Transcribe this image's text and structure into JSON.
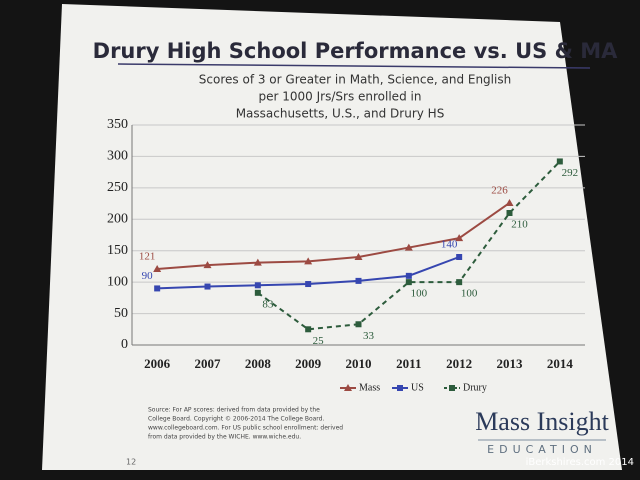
{
  "chart_data": {
    "type": "line",
    "title": "Drury High School Performance vs. US & MA",
    "subtitle": [
      "Scores of 3 or Greater in Math, Science, and English",
      "per 1000 Jrs/Srs enrolled in",
      "Massachusetts, U.S., and Drury HS"
    ],
    "categories": [
      "2006",
      "2007",
      "2008",
      "2009",
      "2010",
      "2011",
      "2012",
      "2013",
      "2014"
    ],
    "series": [
      {
        "name": "Mass",
        "color": "#9c4a42",
        "marker": "triangle",
        "dash": false,
        "values": [
          121,
          127,
          131,
          133,
          140,
          155,
          170,
          226,
          null
        ],
        "value_labels": [
          "121",
          null,
          null,
          null,
          null,
          null,
          null,
          "226",
          null
        ]
      },
      {
        "name": "US",
        "color": "#3646b0",
        "marker": "square",
        "dash": false,
        "values": [
          90,
          93,
          95,
          97,
          102,
          110,
          140,
          null,
          null
        ],
        "value_labels": [
          "90",
          null,
          null,
          null,
          null,
          null,
          "140",
          null,
          null
        ]
      },
      {
        "name": "Drury",
        "color": "#2d5c3c",
        "marker": "square",
        "dash": true,
        "values": [
          null,
          null,
          83,
          25,
          33,
          100,
          100,
          210,
          292
        ],
        "value_labels": [
          null,
          null,
          "83",
          "25",
          "33",
          "100",
          "100",
          "210",
          "292"
        ]
      }
    ],
    "ylim": [
      0,
      350
    ],
    "yticks": [
      0,
      50,
      100,
      150,
      200,
      250,
      300,
      350
    ],
    "grid": true,
    "source": [
      "Source: For AP scores: derived from data provided by the",
      "College Board. Copyright © 2006-2014 The College Board.",
      "www.collegeboard.com. For US public school enrollment: derived",
      "from data provided by the WICHE. www.wiche.edu."
    ],
    "logo": "Mass Insight",
    "logo_sub": "EDUCATION",
    "page_number": "12",
    "watermark": "iBerkshires.com 2014"
  }
}
